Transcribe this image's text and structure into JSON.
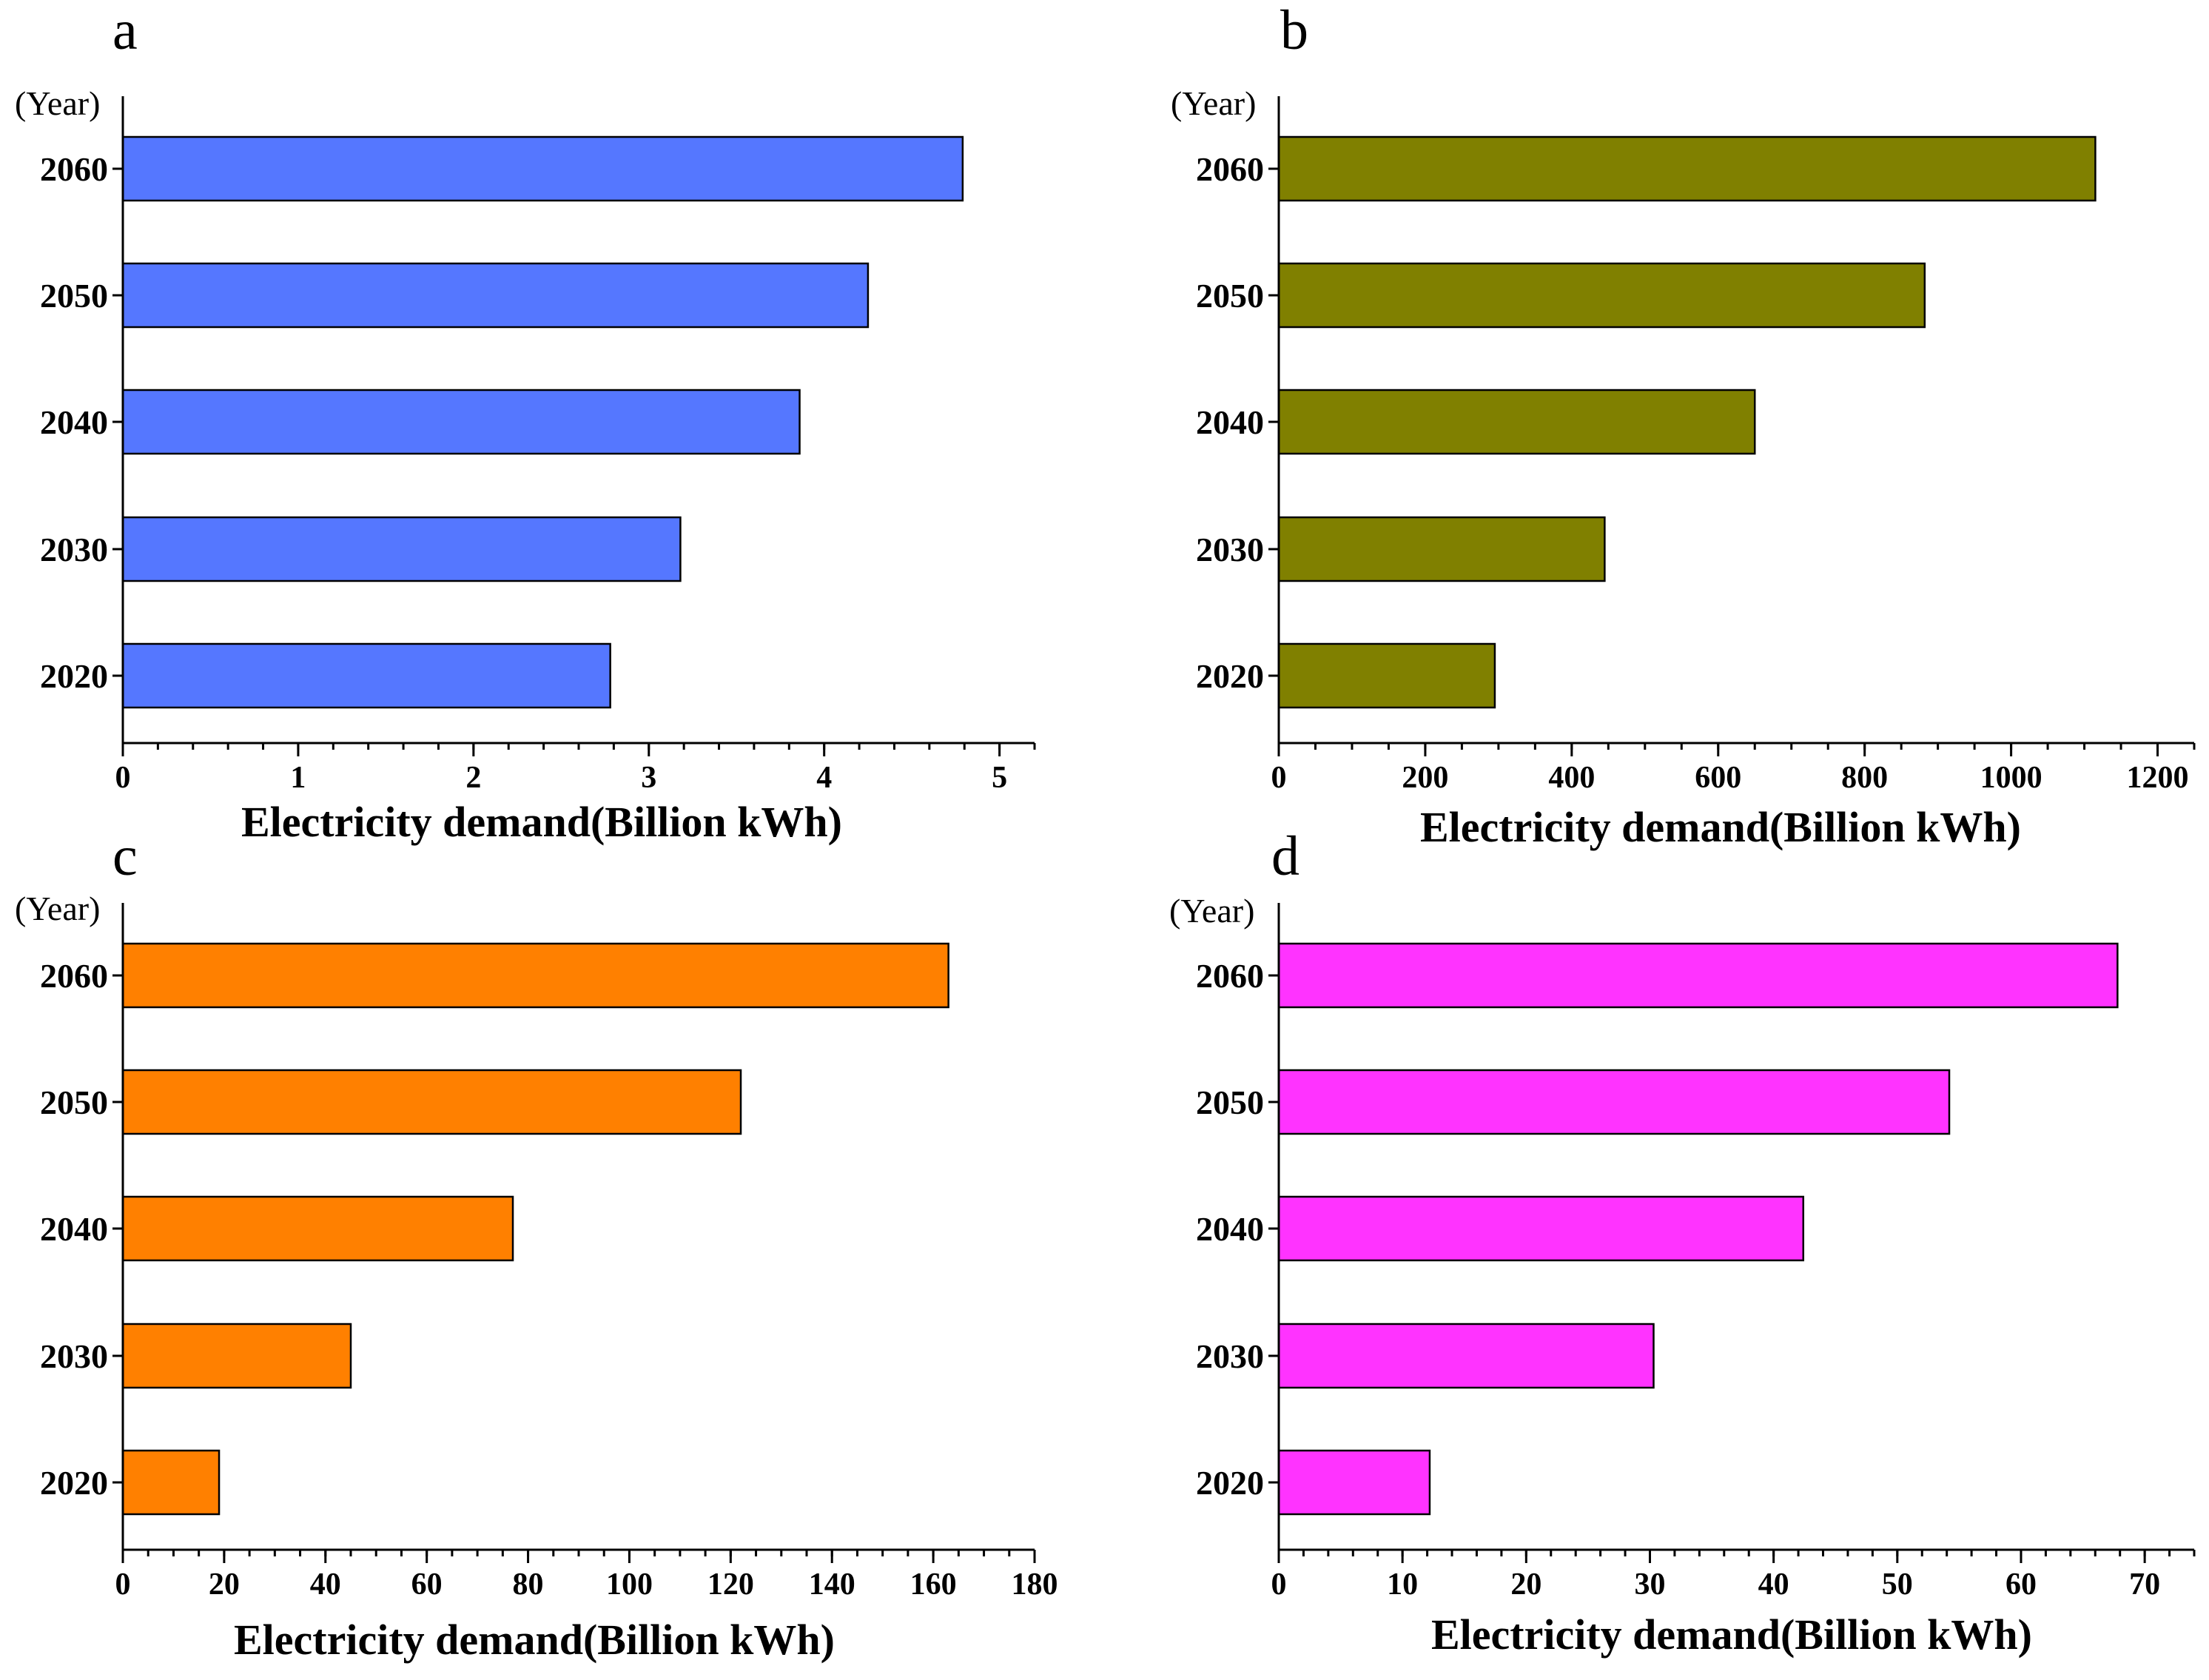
{
  "figure": {
    "chart_data": [
      {
        "panel_label": "a",
        "type": "bar",
        "orientation": "horizontal",
        "y_unit_label": "(Year)",
        "categories": [
          "2060",
          "2050",
          "2040",
          "2030",
          "2020"
        ],
        "values": [
          4.79,
          4.25,
          3.86,
          3.18,
          2.78
        ],
        "color": "#5577ff",
        "xlabel": "Electricity demand(Billion kWh)",
        "xlim": [
          0,
          5.2
        ],
        "xticks": [
          0,
          1,
          2,
          3,
          4,
          5
        ],
        "minor_step": 0.2
      },
      {
        "panel_label": "b",
        "type": "bar",
        "orientation": "horizontal",
        "y_unit_label": "(Year)",
        "categories": [
          "2060",
          "2050",
          "2040",
          "2030",
          "2020"
        ],
        "values": [
          1115,
          882,
          650,
          445,
          295
        ],
        "color": "#808000",
        "xlabel": "Electricity demand(Billion kWh)",
        "xlim": [
          0,
          1250
        ],
        "xticks": [
          0,
          200,
          400,
          600,
          800,
          1000,
          1200
        ],
        "minor_step": 50
      },
      {
        "panel_label": "c",
        "type": "bar",
        "orientation": "horizontal",
        "y_unit_label": "(Year)",
        "categories": [
          "2060",
          "2050",
          "2040",
          "2030",
          "2020"
        ],
        "values": [
          163,
          122,
          77,
          45,
          19
        ],
        "color": "#ff8000",
        "xlabel": "Electricity demand(Billion kWh)",
        "xlim": [
          0,
          180
        ],
        "xticks": [
          0,
          20,
          40,
          60,
          80,
          100,
          120,
          140,
          160,
          180
        ],
        "minor_step": 5
      },
      {
        "panel_label": "d",
        "type": "bar",
        "orientation": "horizontal",
        "y_unit_label": "(Year)",
        "categories": [
          "2060",
          "2050",
          "2040",
          "2030",
          "2020"
        ],
        "values": [
          67.8,
          54.2,
          42.4,
          30.3,
          12.2
        ],
        "color": "#ff33ff",
        "xlabel": "Electricity demand(Billion kWh)",
        "xlim": [
          0,
          74
        ],
        "xticks": [
          0,
          10,
          20,
          30,
          40,
          50,
          60,
          70
        ],
        "minor_step": 2
      }
    ]
  }
}
